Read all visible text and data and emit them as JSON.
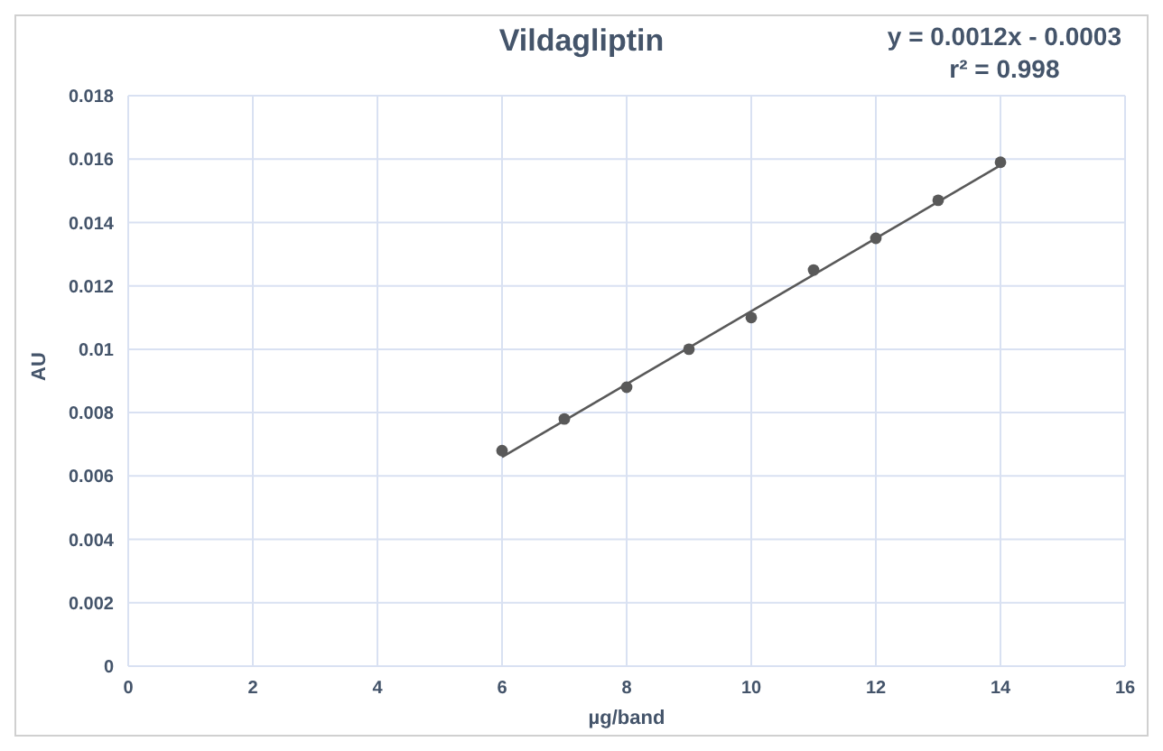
{
  "chart_data": {
    "type": "scatter",
    "title": "Vildagliptin",
    "xlabel": "µg/band",
    "ylabel": "AU",
    "annotations": [
      "y = 0.0012x - 0.0003",
      "r² = 0.998"
    ],
    "x": [
      6,
      7,
      8,
      9,
      10,
      11,
      12,
      13,
      14
    ],
    "series": [
      {
        "color": "#595959",
        "marker": "circle",
        "values": [
          0.0068,
          0.0078,
          0.0088,
          0.01,
          0.011,
          0.0125,
          0.0135,
          0.0147,
          0.0159
        ]
      },
      {
        "type": "line",
        "color": "#595959",
        "marker": "none",
        "x": [
          6,
          14
        ],
        "values": [
          0.0066,
          0.0158
        ]
      }
    ],
    "xlim": [
      0,
      16
    ],
    "xticks": [
      0,
      2,
      4,
      6,
      8,
      10,
      12,
      14,
      16
    ],
    "ylim": [
      0,
      0.018
    ],
    "yticks": [
      0,
      0.002,
      0.004,
      0.006,
      0.008,
      0.01,
      0.012,
      0.014,
      0.016,
      0.018
    ],
    "grid": true,
    "line_style": "solid"
  }
}
